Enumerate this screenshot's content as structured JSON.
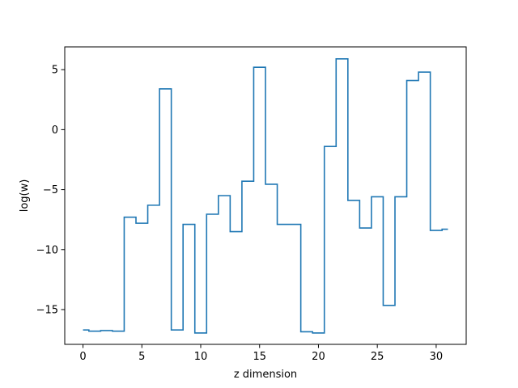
{
  "chart_data": {
    "type": "line",
    "drawstyle": "steps-mid",
    "title": "",
    "xlabel": "z dimension",
    "ylabel": "log(w)",
    "xlim": [
      -1.55,
      32.55
    ],
    "ylim": [
      -17.9,
      6.9
    ],
    "xticks": [
      0,
      5,
      10,
      15,
      20,
      25,
      30
    ],
    "yticks": [
      5,
      0,
      -5,
      -10,
      -15
    ],
    "xtick_labels": [
      "0",
      "5",
      "10",
      "15",
      "20",
      "25",
      "30"
    ],
    "ytick_labels": [
      "5",
      "0",
      "−5",
      "−10",
      "−15"
    ],
    "grid": false,
    "line_color": "#1f77b4",
    "series": [
      {
        "x": [
          0,
          1,
          2,
          3,
          4,
          5,
          6,
          7,
          8,
          9,
          10,
          11,
          12,
          13,
          14,
          15,
          16,
          17,
          18,
          19,
          20,
          21,
          22,
          23,
          24,
          25,
          26,
          27,
          28,
          29,
          30,
          31
        ],
        "values": [
          -16.7,
          -16.8,
          -16.75,
          -16.8,
          -7.3,
          -7.8,
          -6.3,
          3.4,
          -16.7,
          -7.9,
          -16.95,
          -7.05,
          -5.5,
          -8.5,
          -4.3,
          5.2,
          -4.55,
          -7.9,
          -7.9,
          -16.85,
          -16.95,
          -1.4,
          5.9,
          -5.9,
          -8.2,
          -5.6,
          -14.65,
          -5.6,
          4.1,
          4.8,
          -8.4,
          -8.3
        ]
      }
    ]
  }
}
